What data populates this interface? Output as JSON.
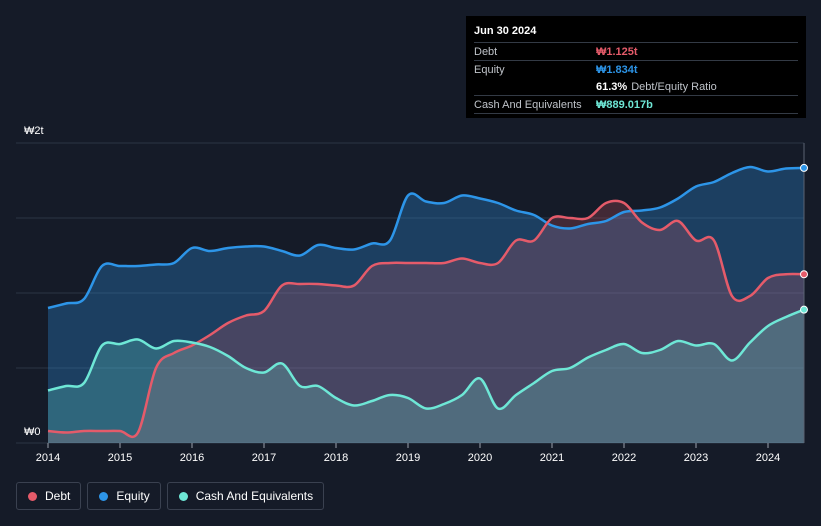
{
  "tooltip": {
    "date": "Jun 30 2024",
    "debt_label": "Debt",
    "debt_value": "₩1.125t",
    "equity_label": "Equity",
    "equity_value": "₩1.834t",
    "ratio_value": "61.3%",
    "ratio_label": "Debt/Equity Ratio",
    "cash_label": "Cash And Equivalents",
    "cash_value": "₩889.017b"
  },
  "legend": {
    "debt": "Debt",
    "equity": "Equity",
    "cash": "Cash And Equivalents"
  },
  "colors": {
    "background": "#151b28",
    "debt": "#e55b6a",
    "equity": "#2d95e8",
    "cash": "#6ee7d6",
    "grid": "#2c3443"
  },
  "chart_data": {
    "type": "area",
    "unit": "₩ trillion",
    "ylim": [
      0,
      2
    ],
    "y_tick_labels": [
      "₩0",
      "₩2t"
    ],
    "x_ticks": [
      2014,
      2015,
      2016,
      2017,
      2018,
      2019,
      2020,
      2021,
      2022,
      2023,
      2024
    ],
    "x_tick_labels": [
      "2014",
      "2015",
      "2016",
      "2017",
      "2018",
      "2019",
      "2020",
      "2021",
      "2022",
      "2023",
      "2024"
    ],
    "series": [
      {
        "name": "Equity",
        "x": [
          2014.0,
          2014.25,
          2014.5,
          2014.75,
          2015.0,
          2015.25,
          2015.5,
          2015.75,
          2016.0,
          2016.25,
          2016.5,
          2016.75,
          2017.0,
          2017.25,
          2017.5,
          2017.75,
          2018.0,
          2018.25,
          2018.5,
          2018.75,
          2019.0,
          2019.25,
          2019.5,
          2019.75,
          2020.0,
          2020.25,
          2020.5,
          2020.75,
          2021.0,
          2021.25,
          2021.5,
          2021.75,
          2022.0,
          2022.25,
          2022.5,
          2022.75,
          2023.0,
          2023.25,
          2023.5,
          2023.75,
          2024.0,
          2024.25,
          2024.5
        ],
        "values": [
          0.9,
          0.93,
          0.96,
          1.18,
          1.18,
          1.18,
          1.19,
          1.2,
          1.3,
          1.28,
          1.3,
          1.31,
          1.31,
          1.28,
          1.25,
          1.32,
          1.3,
          1.29,
          1.33,
          1.35,
          1.65,
          1.61,
          1.6,
          1.65,
          1.63,
          1.6,
          1.55,
          1.52,
          1.45,
          1.43,
          1.46,
          1.48,
          1.54,
          1.55,
          1.57,
          1.63,
          1.71,
          1.74,
          1.8,
          1.84,
          1.81,
          1.83,
          1.834
        ]
      },
      {
        "name": "Debt",
        "x": [
          2014.0,
          2014.25,
          2014.5,
          2014.75,
          2015.0,
          2015.25,
          2015.5,
          2015.75,
          2016.0,
          2016.25,
          2016.5,
          2016.75,
          2017.0,
          2017.25,
          2017.5,
          2017.75,
          2018.0,
          2018.25,
          2018.5,
          2018.75,
          2019.0,
          2019.25,
          2019.5,
          2019.75,
          2020.0,
          2020.25,
          2020.5,
          2020.75,
          2021.0,
          2021.25,
          2021.5,
          2021.75,
          2022.0,
          2022.25,
          2022.5,
          2022.75,
          2023.0,
          2023.25,
          2023.5,
          2023.75,
          2024.0,
          2024.25,
          2024.5
        ],
        "values": [
          0.08,
          0.07,
          0.08,
          0.08,
          0.08,
          0.07,
          0.5,
          0.6,
          0.65,
          0.72,
          0.8,
          0.85,
          0.88,
          1.05,
          1.06,
          1.06,
          1.05,
          1.05,
          1.18,
          1.2,
          1.2,
          1.2,
          1.2,
          1.23,
          1.2,
          1.2,
          1.35,
          1.35,
          1.5,
          1.5,
          1.5,
          1.6,
          1.6,
          1.47,
          1.42,
          1.48,
          1.35,
          1.35,
          0.98,
          0.98,
          1.1,
          1.125,
          1.125
        ]
      },
      {
        "name": "Cash And Equivalents",
        "x": [
          2014.0,
          2014.25,
          2014.5,
          2014.75,
          2015.0,
          2015.25,
          2015.5,
          2015.75,
          2016.0,
          2016.25,
          2016.5,
          2016.75,
          2017.0,
          2017.25,
          2017.5,
          2017.75,
          2018.0,
          2018.25,
          2018.5,
          2018.75,
          2019.0,
          2019.25,
          2019.5,
          2019.75,
          2020.0,
          2020.25,
          2020.5,
          2020.75,
          2021.0,
          2021.25,
          2021.5,
          2021.75,
          2022.0,
          2022.25,
          2022.5,
          2022.75,
          2023.0,
          2023.25,
          2023.5,
          2023.75,
          2024.0,
          2024.25,
          2024.5
        ],
        "values": [
          0.35,
          0.38,
          0.4,
          0.65,
          0.66,
          0.69,
          0.63,
          0.68,
          0.67,
          0.64,
          0.58,
          0.5,
          0.47,
          0.53,
          0.38,
          0.38,
          0.3,
          0.25,
          0.28,
          0.32,
          0.3,
          0.23,
          0.26,
          0.32,
          0.43,
          0.23,
          0.32,
          0.4,
          0.48,
          0.5,
          0.57,
          0.62,
          0.66,
          0.6,
          0.62,
          0.68,
          0.65,
          0.66,
          0.55,
          0.67,
          0.78,
          0.84,
          0.889
        ]
      }
    ]
  }
}
